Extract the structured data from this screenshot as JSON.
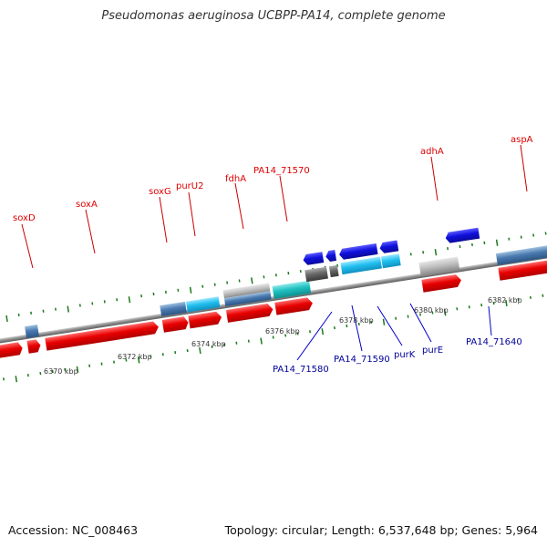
{
  "title": "Pseudomonas aeruginosa UCBPP-PA14, complete genome",
  "footer": {
    "accession": "Accession: NC_008463",
    "summary": "Topology: circular; Length: 6,537,648 bp; Genes: 5,964"
  },
  "colors": {
    "forward_gene": "#e00000",
    "reverse_gene": "#1010dd",
    "forward_label": "#dd0000",
    "reverse_label": "#000099",
    "tick": "#1a7a1a",
    "backbone": "#888888",
    "cyan_feature": "#20c0f0",
    "teal_feature": "#20c0c0",
    "steel_feature": "#4a7ab0",
    "grey_feature": "#b8b8b8",
    "dark_grey_feature": "#666666"
  },
  "scale_labels": [
    "6370 kbp",
    "6372 kbp",
    "6374 kbp",
    "6376 kbp",
    "6378 kbp",
    "6380 kbp",
    "6382 kbp"
  ],
  "forward_genes": [
    "soxD",
    "soxA",
    "soxG",
    "purU2",
    "fdhA",
    "PA14_71570",
    "adhA",
    "aspA"
  ],
  "reverse_genes": [
    "PA14_71580",
    "PA14_71590",
    "purK",
    "purE",
    "PA14_71640"
  ]
}
